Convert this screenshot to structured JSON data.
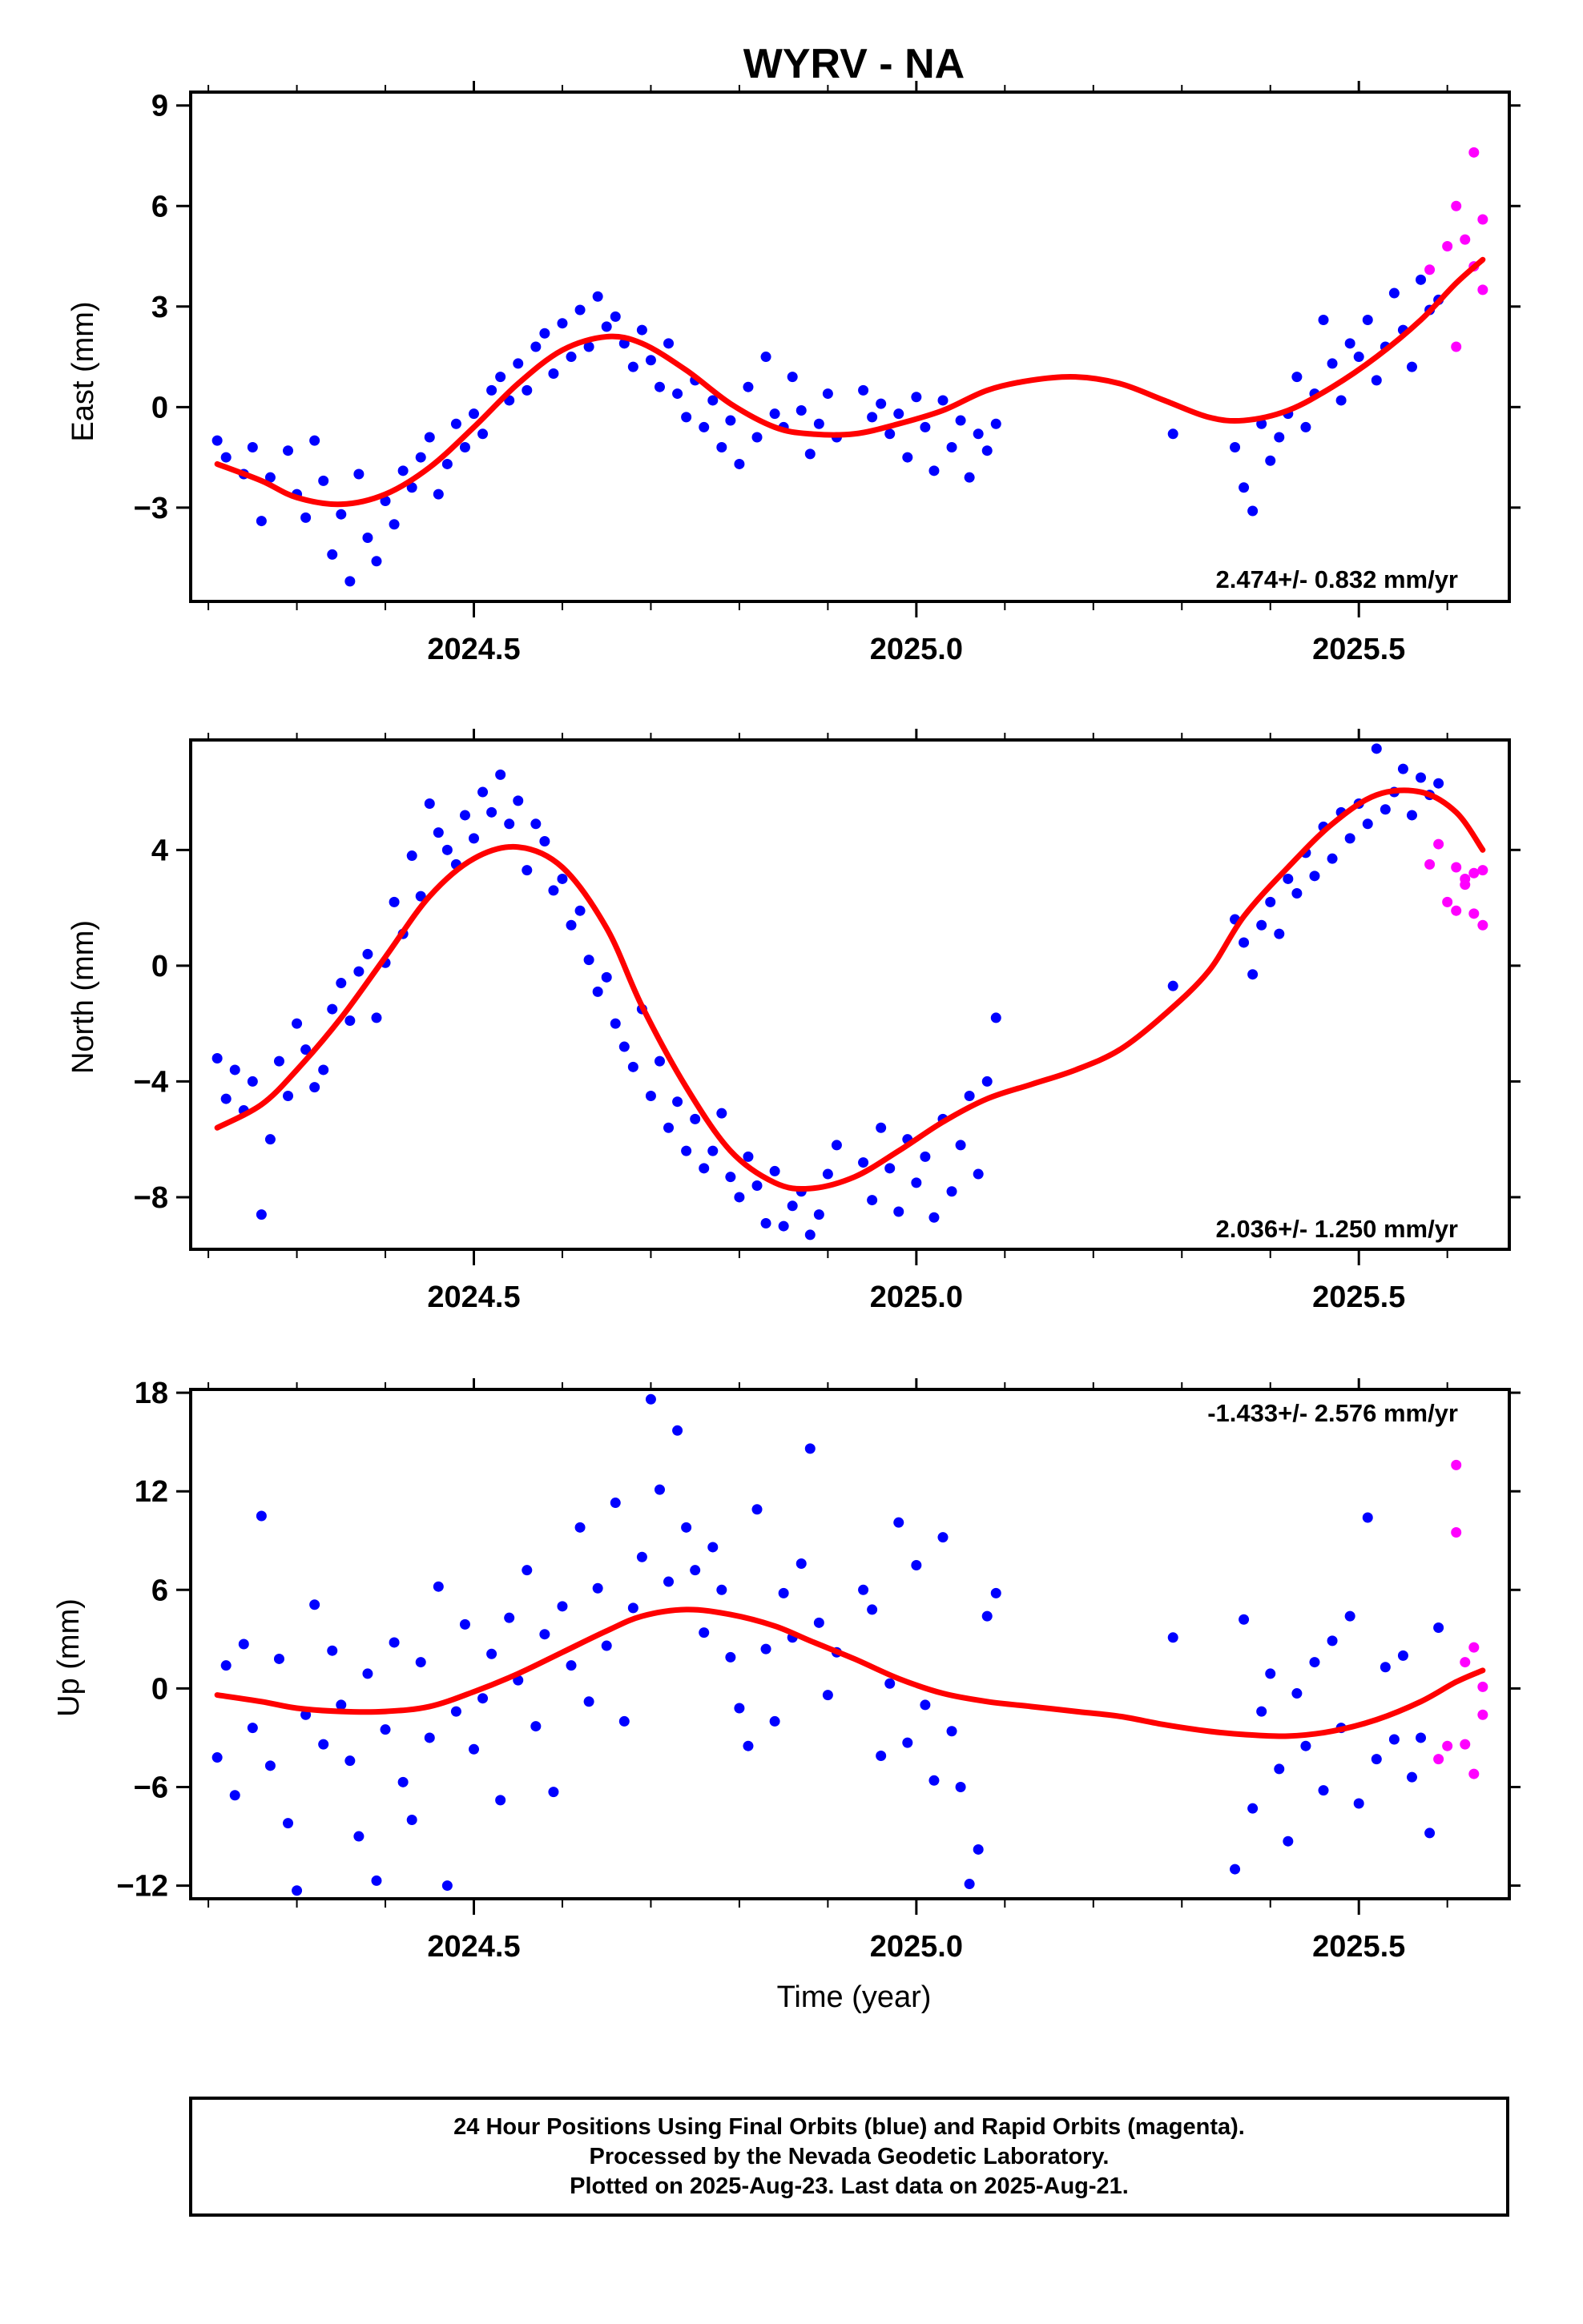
{
  "title": "WYRV - NA",
  "xlabel": "Time (year)",
  "caption": {
    "line1": "24 Hour Positions Using Final Orbits (blue) and Rapid Orbits (magenta).",
    "line2": "Processed by the Nevada Geodetic Laboratory.",
    "line3": "Plotted on 2025-Aug-23. Last data on 2025-Aug-21."
  },
  "colors": {
    "final_orbits": "#0000ff",
    "rapid_orbits": "#ff00ff",
    "fit": "#ff0000"
  },
  "chart_data": [
    {
      "type": "scatter",
      "ylabel": "East (mm)",
      "rate": "2.474+/- 0.832 mm/yr",
      "xlim": [
        2024.18,
        2025.67
      ],
      "ylim": [
        -5.8,
        9.4
      ],
      "xticks": [
        2024.5,
        2025.0,
        2025.5
      ],
      "yticks": [
        -3,
        0,
        3,
        6,
        9
      ],
      "fit": {
        "x": [
          2024.21,
          2024.26,
          2024.3,
          2024.35,
          2024.4,
          2024.45,
          2024.5,
          2024.55,
          2024.6,
          2024.65,
          2024.69,
          2024.74,
          2024.79,
          2024.84,
          2024.88,
          2024.93,
          2024.98,
          2025.03,
          2025.08,
          2025.13,
          2025.18,
          2025.23,
          2025.28,
          2025.33,
          2025.37,
          2025.42,
          2025.47,
          2025.52,
          2025.57,
          2025.61,
          2025.64
        ],
        "y": [
          -1.7,
          -2.2,
          -2.7,
          -2.9,
          -2.6,
          -1.8,
          -0.6,
          0.7,
          1.7,
          2.1,
          1.9,
          1.1,
          0.1,
          -0.6,
          -0.8,
          -0.8,
          -0.5,
          -0.1,
          0.5,
          0.8,
          0.9,
          0.7,
          0.2,
          -0.3,
          -0.4,
          -0.1,
          0.6,
          1.5,
          2.6,
          3.7,
          4.4
        ]
      },
      "final_series": {
        "x": [
          2024.21,
          2024.22,
          2024.24,
          2024.25,
          2024.26,
          2024.27,
          2024.29,
          2024.3,
          2024.31,
          2024.32,
          2024.33,
          2024.34,
          2024.35,
          2024.36,
          2024.37,
          2024.38,
          2024.39,
          2024.4,
          2024.41,
          2024.42,
          2024.43,
          2024.44,
          2024.45,
          2024.46,
          2024.47,
          2024.48,
          2024.49,
          2024.5,
          2024.51,
          2024.52,
          2024.53,
          2024.54,
          2024.55,
          2024.56,
          2024.57,
          2024.58,
          2024.59,
          2024.6,
          2024.61,
          2024.62,
          2024.63,
          2024.64,
          2024.65,
          2024.66,
          2024.67,
          2024.68,
          2024.69,
          2024.7,
          2024.71,
          2024.72,
          2024.73,
          2024.74,
          2024.75,
          2024.76,
          2024.77,
          2024.78,
          2024.79,
          2024.8,
          2024.81,
          2024.82,
          2024.83,
          2024.84,
          2024.85,
          2024.86,
          2024.87,
          2024.88,
          2024.89,
          2024.9,
          2024.91,
          2024.94,
          2024.95,
          2024.96,
          2024.97,
          2024.98,
          2024.99,
          2025.0,
          2025.01,
          2025.02,
          2025.03,
          2025.04,
          2025.05,
          2025.06,
          2025.07,
          2025.08,
          2025.09,
          2025.29,
          2025.36,
          2025.37,
          2025.38,
          2025.39,
          2025.4,
          2025.41,
          2025.42,
          2025.43,
          2025.44,
          2025.45,
          2025.46,
          2025.47,
          2025.48,
          2025.49,
          2025.5,
          2025.51,
          2025.52,
          2025.53,
          2025.54,
          2025.55,
          2025.56,
          2025.57,
          2025.58,
          2025.59
        ],
        "y": [
          -1.0,
          -1.5,
          -2.0,
          -1.2,
          -3.4,
          -2.1,
          -1.3,
          -2.6,
          -3.3,
          -1.0,
          -2.2,
          -4.4,
          -3.2,
          -5.2,
          -2.0,
          -3.9,
          -4.6,
          -2.8,
          -3.5,
          -1.9,
          -2.4,
          -1.5,
          -0.9,
          -2.6,
          -1.7,
          -0.5,
          -1.2,
          -0.2,
          -0.8,
          0.5,
          0.9,
          0.2,
          1.3,
          0.5,
          1.8,
          2.2,
          1.0,
          2.5,
          1.5,
          2.9,
          1.8,
          3.3,
          2.4,
          2.7,
          1.9,
          1.2,
          2.3,
          1.4,
          0.6,
          1.9,
          0.4,
          -0.3,
          0.8,
          -0.6,
          0.2,
          -1.2,
          -0.4,
          -1.7,
          0.6,
          -0.9,
          1.5,
          -0.2,
          -0.6,
          0.9,
          -0.1,
          -1.4,
          -0.5,
          0.4,
          -0.9,
          0.5,
          -0.3,
          0.1,
          -0.8,
          -0.2,
          -1.5,
          0.3,
          -0.6,
          -1.9,
          0.2,
          -1.2,
          -0.4,
          -2.1,
          -0.8,
          -1.3,
          -0.5,
          -0.8,
          -1.2,
          -2.4,
          -3.1,
          -0.5,
          -1.6,
          -0.9,
          -0.2,
          0.9,
          -0.6,
          0.4,
          2.6,
          1.3,
          0.2,
          1.9,
          1.5,
          2.6,
          0.8,
          1.8,
          3.4,
          2.3,
          1.2,
          3.8,
          2.9,
          3.2
        ]
      },
      "rapid_series": {
        "x": [
          2025.58,
          2025.6,
          2025.61,
          2025.61,
          2025.62,
          2025.63,
          2025.63,
          2025.64,
          2025.64
        ],
        "y": [
          4.1,
          4.8,
          6.0,
          1.8,
          5.0,
          7.6,
          4.2,
          3.5,
          5.6
        ]
      }
    },
    {
      "type": "scatter",
      "ylabel": "North (mm)",
      "rate": "2.036+/- 1.250 mm/yr",
      "xlim": [
        2024.18,
        2025.67
      ],
      "ylim": [
        -9.8,
        7.8
      ],
      "xticks": [
        2024.5,
        2025.0,
        2025.5
      ],
      "yticks": [
        -8,
        -4,
        0,
        4
      ],
      "fit": {
        "x": [
          2024.21,
          2024.26,
          2024.3,
          2024.35,
          2024.4,
          2024.45,
          2024.5,
          2024.55,
          2024.6,
          2024.65,
          2024.69,
          2024.74,
          2024.79,
          2024.84,
          2024.88,
          2024.93,
          2024.98,
          2025.03,
          2025.08,
          2025.13,
          2025.18,
          2025.23,
          2025.28,
          2025.33,
          2025.37,
          2025.42,
          2025.47,
          2025.52,
          2025.57,
          2025.61,
          2025.64
        ],
        "y": [
          -5.6,
          -4.8,
          -3.6,
          -1.8,
          0.3,
          2.4,
          3.7,
          4.1,
          3.4,
          1.3,
          -1.4,
          -4.2,
          -6.4,
          -7.5,
          -7.7,
          -7.3,
          -6.4,
          -5.4,
          -4.6,
          -4.1,
          -3.6,
          -2.9,
          -1.7,
          -0.2,
          1.7,
          3.4,
          4.9,
          5.9,
          6.0,
          5.3,
          4.0
        ]
      },
      "final_series": {
        "x": [
          2024.21,
          2024.22,
          2024.23,
          2024.24,
          2024.25,
          2024.26,
          2024.27,
          2024.28,
          2024.29,
          2024.3,
          2024.31,
          2024.32,
          2024.33,
          2024.34,
          2024.35,
          2024.36,
          2024.37,
          2024.38,
          2024.39,
          2024.4,
          2024.41,
          2024.42,
          2024.43,
          2024.44,
          2024.45,
          2024.46,
          2024.47,
          2024.48,
          2024.49,
          2024.5,
          2024.51,
          2024.52,
          2024.53,
          2024.54,
          2024.55,
          2024.56,
          2024.57,
          2024.58,
          2024.59,
          2024.6,
          2024.61,
          2024.62,
          2024.63,
          2024.64,
          2024.65,
          2024.66,
          2024.67,
          2024.68,
          2024.69,
          2024.7,
          2024.71,
          2024.72,
          2024.73,
          2024.74,
          2024.75,
          2024.76,
          2024.77,
          2024.78,
          2024.79,
          2024.8,
          2024.81,
          2024.82,
          2024.83,
          2024.84,
          2024.85,
          2024.86,
          2024.87,
          2024.88,
          2024.89,
          2024.9,
          2024.91,
          2024.94,
          2024.95,
          2024.96,
          2024.97,
          2024.98,
          2024.99,
          2025.0,
          2025.01,
          2025.02,
          2025.03,
          2025.04,
          2025.05,
          2025.06,
          2025.07,
          2025.08,
          2025.09,
          2025.29,
          2025.36,
          2025.37,
          2025.38,
          2025.39,
          2025.4,
          2025.41,
          2025.42,
          2025.43,
          2025.44,
          2025.45,
          2025.46,
          2025.47,
          2025.48,
          2025.49,
          2025.5,
          2025.51,
          2025.52,
          2025.53,
          2025.54,
          2025.55,
          2025.56,
          2025.57,
          2025.58,
          2025.59
        ],
        "y": [
          -3.2,
          -4.6,
          -3.6,
          -5.0,
          -4.0,
          -8.6,
          -6.0,
          -3.3,
          -4.5,
          -2.0,
          -2.9,
          -4.2,
          -3.6,
          -1.5,
          -0.6,
          -1.9,
          -0.2,
          0.4,
          -1.8,
          0.1,
          2.2,
          1.1,
          3.8,
          2.4,
          5.6,
          4.6,
          4.0,
          3.5,
          5.2,
          4.4,
          6.0,
          5.3,
          6.6,
          4.9,
          5.7,
          3.3,
          4.9,
          4.3,
          2.6,
          3.0,
          1.4,
          1.9,
          0.2,
          -0.9,
          -0.4,
          -2.0,
          -2.8,
          -3.5,
          -1.5,
          -4.5,
          -3.3,
          -5.6,
          -4.7,
          -6.4,
          -5.3,
          -7.0,
          -6.4,
          -5.1,
          -7.3,
          -8.0,
          -6.6,
          -7.6,
          -8.9,
          -7.1,
          -9.0,
          -8.3,
          -7.8,
          -9.3,
          -8.6,
          -7.2,
          -6.2,
          -6.8,
          -8.1,
          -5.6,
          -7.0,
          -8.5,
          -6.0,
          -7.5,
          -6.6,
          -8.7,
          -5.3,
          -7.8,
          -6.2,
          -4.5,
          -7.2,
          -4.0,
          -1.8,
          -0.7,
          1.6,
          0.8,
          -0.3,
          1.4,
          2.2,
          1.1,
          3.0,
          2.5,
          3.9,
          3.1,
          4.8,
          3.7,
          5.3,
          4.4,
          5.6,
          4.9,
          7.5,
          5.4,
          6.0,
          6.8,
          5.2,
          6.5,
          5.9,
          6.3
        ]
      },
      "rapid_series": {
        "x": [
          2025.58,
          2025.59,
          2025.6,
          2025.61,
          2025.61,
          2025.62,
          2025.62,
          2025.63,
          2025.63,
          2025.64,
          2025.64
        ],
        "y": [
          3.5,
          4.2,
          2.2,
          3.4,
          1.9,
          3.0,
          2.8,
          3.2,
          1.8,
          3.3,
          1.4
        ]
      }
    },
    {
      "type": "scatter",
      "ylabel": "Up (mm)",
      "rate": "-1.433+/- 2.576 mm/yr",
      "xlim": [
        2024.18,
        2025.67
      ],
      "ylim": [
        -12.8,
        18.2
      ],
      "xticks": [
        2024.5,
        2025.0,
        2025.5
      ],
      "yticks": [
        -12,
        -6,
        0,
        6,
        12,
        18
      ],
      "fit": {
        "x": [
          2024.21,
          2024.26,
          2024.3,
          2024.35,
          2024.4,
          2024.45,
          2024.5,
          2024.55,
          2024.6,
          2024.65,
          2024.69,
          2024.74,
          2024.79,
          2024.84,
          2024.88,
          2024.93,
          2024.98,
          2025.03,
          2025.08,
          2025.13,
          2025.18,
          2025.23,
          2025.28,
          2025.33,
          2025.37,
          2025.42,
          2025.47,
          2025.52,
          2025.57,
          2025.61,
          2025.64
        ],
        "y": [
          -0.4,
          -0.8,
          -1.2,
          -1.4,
          -1.4,
          -1.1,
          -0.2,
          0.9,
          2.2,
          3.5,
          4.4,
          4.8,
          4.5,
          3.8,
          2.9,
          1.8,
          0.6,
          -0.3,
          -0.8,
          -1.1,
          -1.4,
          -1.7,
          -2.2,
          -2.6,
          -2.8,
          -2.9,
          -2.6,
          -1.9,
          -0.8,
          0.4,
          1.1
        ]
      },
      "final_series": {
        "x": [
          2024.21,
          2024.22,
          2024.23,
          2024.24,
          2024.25,
          2024.26,
          2024.27,
          2024.28,
          2024.29,
          2024.3,
          2024.31,
          2024.32,
          2024.33,
          2024.34,
          2024.35,
          2024.36,
          2024.37,
          2024.38,
          2024.39,
          2024.4,
          2024.41,
          2024.42,
          2024.43,
          2024.44,
          2024.45,
          2024.46,
          2024.47,
          2024.48,
          2024.49,
          2024.5,
          2024.51,
          2024.52,
          2024.53,
          2024.54,
          2024.55,
          2024.56,
          2024.57,
          2024.58,
          2024.59,
          2024.6,
          2024.61,
          2024.62,
          2024.63,
          2024.64,
          2024.65,
          2024.66,
          2024.67,
          2024.68,
          2024.69,
          2024.7,
          2024.71,
          2024.72,
          2024.73,
          2024.74,
          2024.75,
          2024.76,
          2024.77,
          2024.78,
          2024.79,
          2024.8,
          2024.81,
          2024.82,
          2024.83,
          2024.84,
          2024.85,
          2024.86,
          2024.87,
          2024.88,
          2024.89,
          2024.9,
          2024.91,
          2024.94,
          2024.95,
          2024.96,
          2024.97,
          2024.98,
          2024.99,
          2025.0,
          2025.01,
          2025.02,
          2025.03,
          2025.04,
          2025.05,
          2025.06,
          2025.07,
          2025.08,
          2025.09,
          2025.29,
          2025.36,
          2025.37,
          2025.38,
          2025.39,
          2025.4,
          2025.41,
          2025.42,
          2025.43,
          2025.44,
          2025.45,
          2025.46,
          2025.47,
          2025.48,
          2025.49,
          2025.5,
          2025.51,
          2025.52,
          2025.53,
          2025.54,
          2025.55,
          2025.56,
          2025.57,
          2025.58,
          2025.59
        ],
        "y": [
          -4.2,
          1.4,
          -6.5,
          2.7,
          -2.4,
          10.5,
          -4.7,
          1.8,
          -8.2,
          -12.3,
          -1.6,
          5.1,
          -3.4,
          2.3,
          -1.0,
          -4.4,
          -9.0,
          0.9,
          -11.7,
          -2.5,
          2.8,
          -5.7,
          -8.0,
          1.6,
          -3.0,
          6.2,
          -12.0,
          -1.4,
          3.9,
          -3.7,
          -0.6,
          2.1,
          -6.8,
          4.3,
          0.5,
          7.2,
          -2.3,
          3.3,
          -6.3,
          5.0,
          1.4,
          9.8,
          -0.8,
          6.1,
          2.6,
          11.3,
          -2.0,
          4.9,
          8.0,
          17.6,
          12.1,
          6.5,
          15.7,
          9.8,
          7.2,
          3.4,
          8.6,
          6.0,
          1.9,
          -1.2,
          -3.5,
          10.9,
          2.4,
          -2.0,
          5.8,
          3.1,
          7.6,
          14.6,
          4.0,
          -0.4,
          2.2,
          6.0,
          4.8,
          -4.1,
          0.3,
          10.1,
          -3.3,
          7.5,
          -1.0,
          -5.6,
          9.2,
          -2.6,
          -6.0,
          -11.9,
          -9.8,
          4.4,
          5.8,
          3.1,
          -11.0,
          4.2,
          -7.3,
          -1.4,
          0.9,
          -4.9,
          -9.3,
          -0.3,
          -3.5,
          1.6,
          -6.2,
          2.9,
          -2.4,
          4.4,
          -7.0,
          10.4,
          -4.3,
          1.3,
          -3.1,
          2.0,
          -5.4,
          -3.0,
          -8.8,
          3.7
        ]
      },
      "rapid_series": {
        "x": [
          2025.59,
          2025.6,
          2025.61,
          2025.61,
          2025.62,
          2025.62,
          2025.63,
          2025.63,
          2025.64,
          2025.64
        ],
        "y": [
          -4.3,
          -3.5,
          9.5,
          13.6,
          1.6,
          -3.4,
          2.5,
          -5.2,
          -1.6,
          0.1
        ]
      }
    }
  ]
}
